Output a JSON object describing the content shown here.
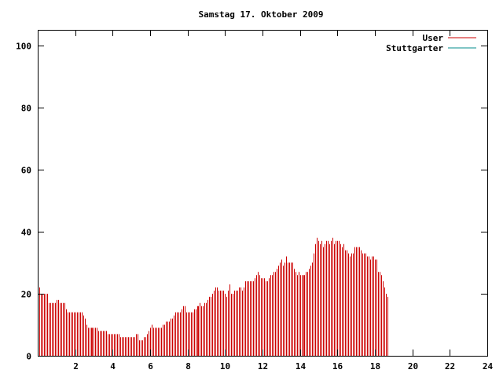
{
  "chart_data": {
    "type": "bar",
    "title": "Samstag 17. Oktober 2009",
    "xlabel": "",
    "ylabel": "",
    "xlim": [
      0,
      24
    ],
    "ylim": [
      0,
      105
    ],
    "x_ticks": [
      2,
      4,
      6,
      8,
      10,
      12,
      14,
      16,
      18,
      20,
      22,
      24
    ],
    "x_tick_labels": [
      "2",
      "4",
      "6",
      "8",
      "10",
      "12",
      "14",
      "16",
      "18",
      "20",
      "22",
      "24"
    ],
    "y_ticks": [
      0,
      20,
      40,
      60,
      80,
      100
    ],
    "y_tick_labels": [
      "0",
      "20",
      "40",
      "60",
      "80",
      "100"
    ],
    "legend": {
      "position": "top-right"
    },
    "series": [
      {
        "name": "User",
        "color": "#cc0000",
        "x_start": 0,
        "x_step": 0.0833,
        "values": [
          23,
          22,
          20,
          20,
          20,
          20,
          20,
          17,
          17,
          17,
          17,
          17,
          18,
          18,
          17,
          17,
          17,
          17,
          15,
          14,
          14,
          14,
          14,
          14,
          14,
          14,
          14,
          14,
          14,
          13,
          12,
          10,
          9,
          9,
          9,
          9,
          9,
          9,
          9,
          8,
          8,
          8,
          8,
          8,
          8,
          7,
          7,
          7,
          7,
          7,
          7,
          7,
          7,
          6,
          6,
          6,
          6,
          6,
          6,
          6,
          6,
          6,
          6,
          7,
          7,
          5,
          5,
          5,
          6,
          6,
          7,
          8,
          9,
          10,
          9,
          9,
          9,
          9,
          9,
          9,
          10,
          10,
          11,
          11,
          11,
          12,
          12,
          13,
          14,
          14,
          14,
          14,
          15,
          16,
          16,
          14,
          14,
          14,
          14,
          14,
          15,
          15,
          16,
          16,
          17,
          16,
          16,
          17,
          17,
          18,
          19,
          19,
          20,
          21,
          22,
          22,
          21,
          21,
          21,
          21,
          20,
          19,
          21,
          23,
          20,
          20,
          21,
          21,
          21,
          22,
          22,
          21,
          22,
          24,
          24,
          24,
          24,
          24,
          24,
          25,
          26,
          27,
          26,
          25,
          25,
          25,
          24,
          24,
          25,
          26,
          26,
          27,
          27,
          28,
          29,
          30,
          31,
          29,
          30,
          32,
          30,
          30,
          30,
          30,
          28,
          27,
          26,
          27,
          26,
          26,
          26,
          26,
          27,
          27,
          28,
          29,
          30,
          33,
          36,
          38,
          37,
          36,
          37,
          35,
          36,
          37,
          37,
          36,
          37,
          38,
          36,
          37,
          37,
          37,
          36,
          35,
          36,
          34,
          34,
          33,
          32,
          33,
          33,
          35,
          35,
          35,
          35,
          34,
          33,
          33,
          33,
          32,
          32,
          31,
          32,
          32,
          31,
          31,
          27,
          27,
          26,
          24,
          22,
          20,
          19
        ]
      },
      {
        "name": "Stuttgarter",
        "color": "#008b8b",
        "values": []
      }
    ]
  }
}
